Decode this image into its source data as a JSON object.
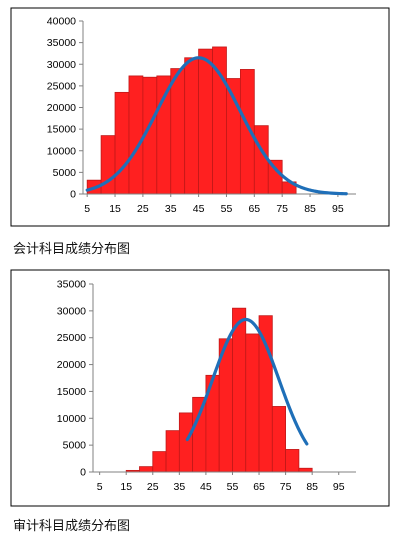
{
  "chart_data": [
    {
      "type": "bar",
      "caption": "会计科目成绩分布图",
      "ylim": [
        0,
        40000
      ],
      "yticks": [
        0,
        5000,
        10000,
        15000,
        20000,
        25000,
        30000,
        35000,
        40000
      ],
      "xticks": [
        5,
        15,
        25,
        35,
        45,
        55,
        65,
        75,
        85,
        95
      ],
      "bins": [
        {
          "x0": 5,
          "x1": 10,
          "value": 3200
        },
        {
          "x0": 10,
          "x1": 15,
          "value": 13500
        },
        {
          "x0": 15,
          "x1": 20,
          "value": 23500
        },
        {
          "x0": 20,
          "x1": 25,
          "value": 27300
        },
        {
          "x0": 25,
          "x1": 30,
          "value": 27000
        },
        {
          "x0": 30,
          "x1": 35,
          "value": 27300
        },
        {
          "x0": 35,
          "x1": 40,
          "value": 29000
        },
        {
          "x0": 40,
          "x1": 45,
          "value": 31500
        },
        {
          "x0": 45,
          "x1": 50,
          "value": 33500
        },
        {
          "x0": 50,
          "x1": 55,
          "value": 34000
        },
        {
          "x0": 55,
          "x1": 60,
          "value": 26700
        },
        {
          "x0": 60,
          "x1": 65,
          "value": 28800
        },
        {
          "x0": 65,
          "x1": 70,
          "value": 15800
        },
        {
          "x0": 70,
          "x1": 75,
          "value": 7800
        },
        {
          "x0": 75,
          "x1": 80,
          "value": 2800
        }
      ],
      "curve": {
        "mean": 45,
        "sd": 15,
        "peak": 31500,
        "xmin": 5,
        "xmax": 98
      },
      "colors": {
        "bar": "#ff2020",
        "bar_edge": "#c01818",
        "curve": "#1f6fb8"
      }
    },
    {
      "type": "bar",
      "caption": "审计科目成绩分布图",
      "ylim": [
        0,
        35000
      ],
      "yticks": [
        0,
        5000,
        10000,
        15000,
        20000,
        25000,
        30000,
        35000
      ],
      "xticks": [
        5,
        15,
        25,
        35,
        45,
        55,
        65,
        75,
        85,
        95
      ],
      "bins": [
        {
          "x0": 15,
          "x1": 20,
          "value": 300
        },
        {
          "x0": 20,
          "x1": 25,
          "value": 1000
        },
        {
          "x0": 25,
          "x1": 30,
          "value": 3800
        },
        {
          "x0": 30,
          "x1": 35,
          "value": 7700
        },
        {
          "x0": 35,
          "x1": 40,
          "value": 11000
        },
        {
          "x0": 40,
          "x1": 45,
          "value": 13900
        },
        {
          "x0": 45,
          "x1": 50,
          "value": 18000
        },
        {
          "x0": 50,
          "x1": 55,
          "value": 24800
        },
        {
          "x0": 55,
          "x1": 60,
          "value": 30500
        },
        {
          "x0": 60,
          "x1": 65,
          "value": 25700
        },
        {
          "x0": 65,
          "x1": 70,
          "value": 29100
        },
        {
          "x0": 70,
          "x1": 75,
          "value": 12200
        },
        {
          "x0": 75,
          "x1": 80,
          "value": 4200
        },
        {
          "x0": 80,
          "x1": 85,
          "value": 700
        }
      ],
      "curve": {
        "mean": 60,
        "sd": 12.5,
        "peak": 28400,
        "xmin": 38,
        "xmax": 83
      },
      "colors": {
        "bar": "#ff2020",
        "bar_edge": "#c01818",
        "curve": "#1f6fb8"
      }
    }
  ]
}
